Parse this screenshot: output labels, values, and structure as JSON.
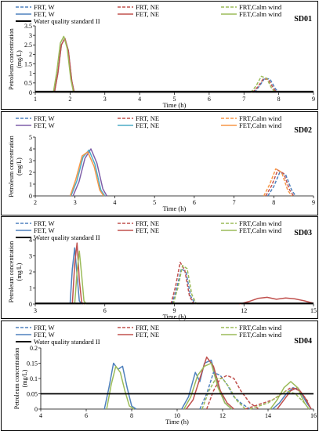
{
  "chart_data": [
    {
      "type": "line",
      "panel_label": "SD01",
      "xlabel": "Time   (h)",
      "ylabel": "Petroleum concentration (mg/L)",
      "xlim": [
        1,
        9
      ],
      "ylim": [
        0,
        3.5
      ],
      "xticks": [
        1,
        2,
        3,
        4,
        5,
        6,
        7,
        8,
        9
      ],
      "yticks": [
        0,
        0.5,
        1,
        1.5,
        2,
        2.5,
        3,
        3.5
      ],
      "legend": [
        {
          "name": "FRT, W",
          "color": "#4F81BD",
          "dash": true
        },
        {
          "name": "FRT, NE",
          "color": "#C0504D",
          "dash": true
        },
        {
          "name": "FRT,Calm wind",
          "color": "#9BBB59",
          "dash": true
        },
        {
          "name": "FET, W",
          "color": "#4F81BD",
          "dash": false
        },
        {
          "name": "FET, NE",
          "color": "#C0504D",
          "dash": false
        },
        {
          "name": "FET,Calm wind",
          "color": "#9BBB59",
          "dash": false
        },
        {
          "name": "Water quality standard II",
          "color": "#000000",
          "dash": false,
          "thick": true
        }
      ],
      "series": [
        {
          "name": "FET, W",
          "color": "#4F81BD",
          "dash": false,
          "x": [
            1.55,
            1.65,
            1.75,
            1.85,
            1.95,
            2.05,
            2.12
          ],
          "y": [
            0,
            1.0,
            2.5,
            2.85,
            2.2,
            0.6,
            0
          ]
        },
        {
          "name": "FET, NE",
          "color": "#C0504D",
          "dash": false,
          "x": [
            1.55,
            1.65,
            1.75,
            1.85,
            1.95,
            2.05,
            2.12
          ],
          "y": [
            0,
            1.0,
            2.5,
            2.85,
            2.2,
            0.6,
            0
          ]
        },
        {
          "name": "FET,Calm wind",
          "color": "#9BBB59",
          "dash": false,
          "x": [
            1.52,
            1.62,
            1.72,
            1.82,
            1.92,
            2.02,
            2.1
          ],
          "y": [
            0,
            1.1,
            2.6,
            2.95,
            2.3,
            0.7,
            0
          ]
        },
        {
          "name": "FRT, W",
          "color": "#4F81BD",
          "dash": true,
          "x": [
            7.3,
            7.45,
            7.6,
            7.75,
            7.9,
            8.0
          ],
          "y": [
            0,
            0.35,
            0.75,
            0.7,
            0.2,
            0
          ]
        },
        {
          "name": "FRT, NE",
          "color": "#C0504D",
          "dash": true,
          "x": [
            7.25,
            7.4,
            7.55,
            7.7,
            7.85,
            7.95
          ],
          "y": [
            0,
            0.3,
            0.7,
            0.7,
            0.2,
            0
          ]
        },
        {
          "name": "FRT,Calm wind",
          "color": "#9BBB59",
          "dash": true,
          "x": [
            7.2,
            7.35,
            7.5,
            7.65,
            7.8,
            7.9
          ],
          "y": [
            0,
            0.35,
            0.85,
            0.75,
            0.2,
            0
          ]
        },
        {
          "name": "Water quality standard II",
          "color": "#000000",
          "dash": false,
          "thick": true,
          "x": [
            1,
            9
          ],
          "y": [
            0.05,
            0.05
          ]
        }
      ]
    },
    {
      "type": "line",
      "panel_label": "SD02",
      "xlabel": "Time   (h)",
      "ylabel": "Petroleum concentration (mg/L)",
      "xlim": [
        2,
        9
      ],
      "ylim": [
        0,
        5
      ],
      "xticks": [
        2,
        3,
        4,
        5,
        6,
        7,
        8,
        9
      ],
      "yticks": [
        0,
        1,
        2,
        3,
        4,
        5
      ],
      "legend": [
        {
          "name": "FRT, W",
          "color": "#4F81BD",
          "dash": true
        },
        {
          "name": "FRT, NE",
          "color": "#C0504D",
          "dash": true
        },
        {
          "name": "FRT,Calm wind",
          "color": "#F79646",
          "dash": true
        },
        {
          "name": "FET, W",
          "color": "#7F5FA8",
          "dash": false
        },
        {
          "name": "FET, NE",
          "color": "#4BACC6",
          "dash": false
        },
        {
          "name": "FET,Calm wind",
          "color": "#F79646",
          "dash": false
        }
      ],
      "series": [
        {
          "name": "FET, W",
          "color": "#7F5FA8",
          "dash": false,
          "x": [
            2.95,
            3.1,
            3.25,
            3.4,
            3.55,
            3.7,
            3.8
          ],
          "y": [
            0,
            1.2,
            3.2,
            4.0,
            2.8,
            0.6,
            0
          ]
        },
        {
          "name": "FET, NE",
          "color": "#4BACC6",
          "dash": false,
          "x": [
            2.9,
            3.05,
            3.2,
            3.35,
            3.5,
            3.65,
            3.75
          ],
          "y": [
            0,
            1.3,
            3.3,
            3.9,
            2.7,
            0.5,
            0
          ]
        },
        {
          "name": "FET,Calm wind",
          "color": "#F79646",
          "dash": false,
          "x": [
            2.88,
            3.02,
            3.18,
            3.32,
            3.48,
            3.62,
            3.72
          ],
          "y": [
            0,
            1.4,
            3.4,
            3.75,
            2.5,
            0.5,
            0
          ]
        },
        {
          "name": "FRT, W",
          "color": "#4F81BD",
          "dash": true,
          "x": [
            7.85,
            8.0,
            8.15,
            8.3,
            8.45,
            8.55
          ],
          "y": [
            0,
            0.8,
            2.0,
            1.8,
            0.5,
            0
          ]
        },
        {
          "name": "FRT, NE",
          "color": "#C0504D",
          "dash": true,
          "x": [
            7.8,
            7.95,
            8.1,
            8.25,
            8.4,
            8.5
          ],
          "y": [
            0,
            0.9,
            2.2,
            1.9,
            0.5,
            0
          ]
        },
        {
          "name": "FRT,Calm wind",
          "color": "#F79646",
          "dash": true,
          "x": [
            7.75,
            7.9,
            8.05,
            8.2,
            8.35,
            8.45
          ],
          "y": [
            0,
            1.0,
            2.3,
            2.0,
            0.5,
            0
          ]
        }
      ]
    },
    {
      "type": "line",
      "panel_label": "SD03",
      "xlabel": "Time   (h)",
      "ylabel": "Petroleum concentration (mg/L)",
      "xlim": [
        3,
        15
      ],
      "ylim": [
        0,
        4
      ],
      "xticks": [
        3,
        6,
        9,
        12,
        15
      ],
      "yticks": [
        0,
        1,
        2,
        3,
        4
      ],
      "legend": [
        {
          "name": "FRT, W",
          "color": "#4F81BD",
          "dash": true
        },
        {
          "name": "FRT, NE",
          "color": "#C0504D",
          "dash": true
        },
        {
          "name": "FRT,Calm wind",
          "color": "#9BBB59",
          "dash": true
        },
        {
          "name": "FET, W",
          "color": "#4F81BD",
          "dash": false
        },
        {
          "name": "FET, NE",
          "color": "#C0504D",
          "dash": false
        },
        {
          "name": "FET,Calm wind",
          "color": "#9BBB59",
          "dash": false
        },
        {
          "name": "Water quality standard II",
          "color": "#000000",
          "dash": false,
          "thick": true
        }
      ],
      "series": [
        {
          "name": "FET, W",
          "color": "#4F81BD",
          "dash": false,
          "x": [
            4.5,
            4.6,
            4.7,
            4.8,
            4.9,
            5.0
          ],
          "y": [
            0,
            2.2,
            3.5,
            1.8,
            0.2,
            0
          ]
        },
        {
          "name": "FET, NE",
          "color": "#C0504D",
          "dash": false,
          "x": [
            4.6,
            4.7,
            4.8,
            4.9,
            5.0,
            5.1
          ],
          "y": [
            0,
            2.5,
            3.8,
            1.5,
            0.1,
            0
          ]
        },
        {
          "name": "FET,Calm wind",
          "color": "#9BBB59",
          "dash": false,
          "x": [
            4.7,
            4.8,
            4.9,
            5.0,
            5.1,
            5.2
          ],
          "y": [
            0,
            2.0,
            3.3,
            1.8,
            0.2,
            0
          ]
        },
        {
          "name": "FRT, W",
          "color": "#4F81BD",
          "dash": true,
          "x": [
            8.9,
            9.1,
            9.3,
            9.5,
            9.7,
            9.9
          ],
          "y": [
            0,
            1.0,
            2.2,
            2.0,
            0.5,
            0
          ]
        },
        {
          "name": "FRT, NE",
          "color": "#C0504D",
          "dash": true,
          "x": [
            8.85,
            9.05,
            9.25,
            9.45,
            9.65,
            9.85
          ],
          "y": [
            0,
            1.1,
            2.6,
            2.1,
            0.5,
            0
          ]
        },
        {
          "name": "FRT,Calm wind",
          "color": "#9BBB59",
          "dash": true,
          "x": [
            8.95,
            9.15,
            9.35,
            9.55,
            9.75,
            9.95
          ],
          "y": [
            0,
            1.0,
            2.4,
            2.2,
            0.6,
            0
          ]
        },
        {
          "name": "FET, NE",
          "color": "#C0504D",
          "dash": false,
          "x": [
            11.8,
            12.2,
            12.6,
            13.0,
            13.4,
            13.8,
            14.2,
            14.6,
            15.0
          ],
          "y": [
            0,
            0.15,
            0.35,
            0.42,
            0.3,
            0.38,
            0.32,
            0.2,
            0.05
          ]
        },
        {
          "name": "Water quality standard II",
          "color": "#000000",
          "dash": false,
          "thick": true,
          "x": [
            3,
            15
          ],
          "y": [
            0.05,
            0.05
          ]
        }
      ]
    },
    {
      "type": "line",
      "panel_label": "SD04",
      "xlabel": "Time   (h)",
      "ylabel": "Petroleum concentration (mg/L)",
      "xlim": [
        4,
        16
      ],
      "ylim": [
        0,
        0.2
      ],
      "xticks": [
        4,
        6,
        8,
        10,
        12,
        14,
        16
      ],
      "yticks": [
        0,
        0.05,
        0.1,
        0.15,
        0.2
      ],
      "legend": [
        {
          "name": "FRT, W",
          "color": "#4F81BD",
          "dash": true
        },
        {
          "name": "FRT, NE",
          "color": "#C0504D",
          "dash": true
        },
        {
          "name": "FRT,Calm wind",
          "color": "#9BBB59",
          "dash": true
        },
        {
          "name": "FET, W",
          "color": "#4F81BD",
          "dash": false
        },
        {
          "name": "FET, NE",
          "color": "#C0504D",
          "dash": false
        },
        {
          "name": "FET,Calm wind",
          "color": "#9BBB59",
          "dash": false
        },
        {
          "name": "Water quality standard II",
          "color": "#000000",
          "dash": false,
          "thick": true
        }
      ],
      "series": [
        {
          "name": "FET, W",
          "color": "#4F81BD",
          "dash": false,
          "x": [
            6.8,
            7.0,
            7.2,
            7.4,
            7.6,
            7.8,
            8.0,
            8.2
          ],
          "y": [
            0,
            0.07,
            0.15,
            0.13,
            0.14,
            0.07,
            0.01,
            0
          ]
        },
        {
          "name": "FET,Calm wind",
          "color": "#9BBB59",
          "dash": false,
          "x": [
            6.9,
            7.1,
            7.3,
            7.5,
            7.7,
            7.9,
            8.1
          ],
          "y": [
            0,
            0.08,
            0.14,
            0.12,
            0.06,
            0.01,
            0
          ]
        },
        {
          "name": "FET, W",
          "color": "#4F81BD",
          "dash": false,
          "x": [
            10.2,
            10.5,
            10.8,
            11.0,
            11.2,
            11.5,
            11.8,
            12.1,
            12.4
          ],
          "y": [
            0,
            0.04,
            0.12,
            0.09,
            0.15,
            0.16,
            0.08,
            0.02,
            0
          ]
        },
        {
          "name": "FET, NE",
          "color": "#C0504D",
          "dash": false,
          "x": [
            10.4,
            10.7,
            11.0,
            11.3,
            11.6,
            11.9,
            12.2,
            12.5
          ],
          "y": [
            0,
            0.03,
            0.1,
            0.17,
            0.14,
            0.06,
            0.02,
            0
          ]
        },
        {
          "name": "FET,Calm wind",
          "color": "#9BBB59",
          "dash": false,
          "x": [
            10.3,
            10.6,
            10.9,
            11.2,
            11.5,
            11.8,
            12.1,
            12.4
          ],
          "y": [
            0,
            0.04,
            0.11,
            0.14,
            0.15,
            0.07,
            0.02,
            0
          ]
        },
        {
          "name": "FRT, W",
          "color": "#4F81BD",
          "dash": true,
          "x": [
            11.0,
            11.3,
            11.6,
            11.9,
            12.2,
            12.5,
            12.8,
            13.2
          ],
          "y": [
            0,
            0.05,
            0.12,
            0.11,
            0.08,
            0.04,
            0.02,
            0
          ]
        },
        {
          "name": "FRT, NE",
          "color": "#C0504D",
          "dash": true,
          "x": [
            11.3,
            11.6,
            11.9,
            12.2,
            12.5,
            12.8,
            13.2,
            13.6
          ],
          "y": [
            0,
            0.06,
            0.1,
            0.11,
            0.1,
            0.06,
            0.02,
            0
          ]
        },
        {
          "name": "FRT,Calm wind",
          "color": "#9BBB59",
          "dash": true,
          "x": [
            11.1,
            11.4,
            11.7,
            12.0,
            12.3,
            12.6,
            13.0
          ],
          "y": [
            0,
            0.06,
            0.1,
            0.1,
            0.07,
            0.03,
            0
          ]
        },
        {
          "name": "FET, W",
          "color": "#4F81BD",
          "dash": false,
          "x": [
            14.2,
            14.5,
            14.8,
            15.1,
            15.4,
            15.7,
            15.9
          ],
          "y": [
            0,
            0.02,
            0.05,
            0.07,
            0.06,
            0.02,
            0
          ]
        },
        {
          "name": "FET, NE",
          "color": "#C0504D",
          "dash": false,
          "x": [
            14.4,
            14.7,
            15.0,
            15.3,
            15.6,
            15.9
          ],
          "y": [
            0,
            0.03,
            0.06,
            0.07,
            0.04,
            0
          ]
        },
        {
          "name": "FET,Calm wind",
          "color": "#9BBB59",
          "dash": false,
          "x": [
            14.1,
            14.4,
            14.7,
            15.0,
            15.3,
            15.6,
            15.8
          ],
          "y": [
            0,
            0.03,
            0.07,
            0.09,
            0.07,
            0.02,
            0
          ]
        },
        {
          "name": "FRT, NE",
          "color": "#C0504D",
          "dash": true,
          "x": [
            13.0,
            13.4,
            13.8,
            14.2,
            14.6,
            15.0,
            15.4,
            15.8
          ],
          "y": [
            0,
            0.01,
            0.02,
            0.03,
            0.05,
            0.07,
            0.06,
            0.02
          ]
        },
        {
          "name": "FRT,Calm wind",
          "color": "#9BBB59",
          "dash": true,
          "x": [
            13.2,
            13.6,
            14.0,
            14.4,
            14.8,
            15.2,
            15.6
          ],
          "y": [
            0,
            0.01,
            0.02,
            0.04,
            0.06,
            0.05,
            0.02
          ]
        },
        {
          "name": "Water quality standard II",
          "color": "#000000",
          "dash": false,
          "thick": true,
          "x": [
            4,
            16
          ],
          "y": [
            0.05,
            0.05
          ]
        }
      ]
    }
  ]
}
